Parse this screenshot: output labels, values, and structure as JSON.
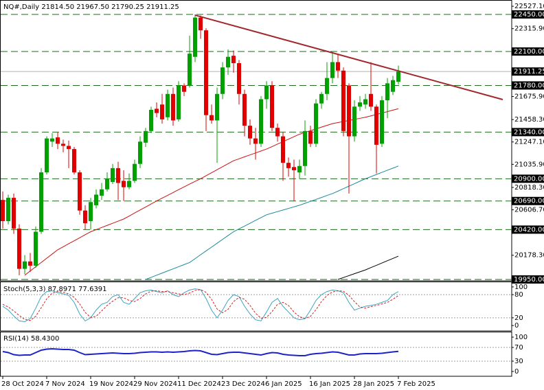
{
  "chart_data": [
    {
      "type": "candlestick",
      "header": "NQ#,Daily  21814.50 21967.50 21790.25 21911.25",
      "categories": [
        "28 Oct 2024",
        null,
        null,
        null,
        null,
        null,
        null,
        null,
        "7 Nov 2024",
        null,
        null,
        null,
        null,
        null,
        null,
        null,
        "19 Nov 2024",
        null,
        null,
        null,
        null,
        null,
        null,
        null,
        "29 Nov 2024",
        null,
        null,
        null,
        null,
        null,
        null,
        null,
        "11 Dec 2024",
        null,
        null,
        null,
        null,
        null,
        null,
        null,
        "23 Dec 2024",
        null,
        null,
        null,
        null,
        null,
        null,
        null,
        "6 Jan 2025",
        null,
        null,
        null,
        null,
        null,
        null,
        null,
        "16 Jan 2025",
        null,
        null,
        null,
        null,
        null,
        null,
        null,
        "28 Jan 2025",
        null,
        null,
        null,
        null,
        null,
        null,
        null,
        "7 Feb 2025"
      ],
      "open": [
        20700,
        20500,
        20720,
        20430,
        20050,
        20120,
        20080,
        20400,
        20960,
        21250,
        21290,
        21230,
        21210,
        21180,
        20960,
        20600,
        20500,
        20650,
        20740,
        20800,
        20870,
        21000,
        20880,
        20820,
        20880,
        21040,
        21240,
        21350,
        21560,
        21600,
        21480,
        21700,
        21460,
        21780,
        21780,
        22050,
        22420,
        22300,
        21500,
        21450,
        21700,
        21950,
        22060,
        21990,
        21700,
        21400,
        21280,
        21230,
        21650,
        21780,
        21380,
        21300,
        21050,
        21010,
        20960,
        21020,
        21350,
        21230,
        21610,
        21700,
        21850,
        22000,
        21920,
        21780,
        21300,
        21580,
        21600,
        21700,
        21580,
        21230,
        21640,
        21720,
        21814.5
      ],
      "high": [
        20780,
        20750,
        20760,
        20470,
        20180,
        20200,
        20450,
        21000,
        21300,
        21330,
        21340,
        21270,
        21260,
        21200,
        20980,
        20650,
        20720,
        20800,
        20860,
        20960,
        21040,
        21060,
        20980,
        20950,
        21080,
        21300,
        21380,
        21580,
        21620,
        21700,
        21740,
        21760,
        21820,
        21800,
        22250,
        22450,
        22440,
        22320,
        21600,
        21760,
        22000,
        22120,
        22110,
        22020,
        21740,
        21460,
        21380,
        21680,
        21820,
        21820,
        21420,
        21340,
        21100,
        21080,
        21080,
        21450,
        21400,
        21650,
        21720,
        22000,
        22100,
        22080,
        21950,
        21800,
        21640,
        21680,
        21700,
        22000,
        21600,
        21680,
        21850,
        21870,
        21967.5
      ],
      "low": [
        20430,
        20470,
        20380,
        19990,
        20000,
        20020,
        20060,
        20380,
        20940,
        21200,
        21180,
        21150,
        21000,
        20940,
        20560,
        20420,
        20420,
        20620,
        20700,
        20780,
        20850,
        20700,
        20690,
        20800,
        20860,
        21000,
        21200,
        21330,
        21480,
        21420,
        21450,
        21400,
        21440,
        21680,
        21760,
        22000,
        22220,
        21350,
        21420,
        21050,
        21650,
        21880,
        21900,
        21600,
        21300,
        21220,
        21080,
        21200,
        21560,
        21350,
        21250,
        20880,
        20920,
        20690,
        20900,
        20930,
        21200,
        21200,
        21560,
        21640,
        21800,
        21850,
        21300,
        20760,
        21250,
        21540,
        21560,
        21540,
        20950,
        21200,
        21470,
        21690,
        21790.25
      ],
      "close": [
        20500,
        20720,
        20430,
        20050,
        20120,
        20080,
        20400,
        20960,
        21280,
        21280,
        21230,
        21210,
        21180,
        20960,
        20600,
        20480,
        20680,
        20750,
        20800,
        20900,
        21000,
        20860,
        20820,
        20880,
        21040,
        21250,
        21350,
        21550,
        21520,
        21460,
        21700,
        21450,
        21780,
        21720,
        22080,
        22420,
        22300,
        21500,
        21450,
        21700,
        21950,
        22050,
        21990,
        21700,
        21400,
        21280,
        21230,
        21650,
        21780,
        21380,
        21300,
        21050,
        21000,
        20980,
        21020,
        21350,
        21230,
        21610,
        21700,
        21850,
        22000,
        21920,
        21350,
        21300,
        21580,
        21620,
        21650,
        21580,
        21220,
        21640,
        21800,
        21830,
        21911.25
      ],
      "up_color": "#00a000",
      "down_color": "#e00000",
      "lines": [
        {
          "color": "#cc1010",
          "values": [
            null,
            null,
            null,
            null,
            19990,
            20030,
            20070,
            20110,
            20150,
            20190,
            20230,
            20258,
            20287,
            20315,
            20343,
            20372,
            20400,
            20420,
            20440,
            20460,
            20480,
            20500,
            20520,
            20548,
            20577,
            20605,
            20633,
            20662,
            20690,
            20717,
            20743,
            20770,
            20797,
            20823,
            20850,
            20875,
            20900,
            20928,
            20957,
            20985,
            21013,
            21042,
            21070,
            21088,
            21107,
            21125,
            21143,
            21162,
            21180,
            21203,
            21227,
            21250,
            21273,
            21297,
            21320,
            21337,
            21353,
            21370,
            21387,
            21403,
            21420,
            21430,
            21440,
            21450,
            21460,
            21470,
            21480,
            21493,
            21507,
            21520,
            21533,
            21547,
            21560
          ]
        },
        {
          "color": "#1a8a9a",
          "values": [
            null,
            null,
            null,
            null,
            null,
            null,
            null,
            null,
            null,
            null,
            null,
            null,
            null,
            null,
            null,
            null,
            null,
            null,
            null,
            null,
            null,
            null,
            null,
            null,
            null,
            null,
            19950,
            19970,
            19990,
            20010,
            20030,
            20050,
            20070,
            20090,
            20110,
            20146,
            20183,
            20219,
            20255,
            20291,
            20328,
            20364,
            20400,
            20427,
            20453,
            20480,
            20507,
            20533,
            20560,
            20575,
            20590,
            20605,
            20620,
            20635,
            20650,
            20668,
            20687,
            20705,
            20723,
            20742,
            20760,
            20783,
            20807,
            20830,
            20853,
            20877,
            20900,
            20920,
            20940,
            20960,
            20980,
            21000,
            21020
          ]
        },
        {
          "color": "#000000",
          "values": [
            null,
            null,
            null,
            null,
            null,
            null,
            null,
            null,
            null,
            null,
            null,
            null,
            null,
            null,
            null,
            null,
            null,
            null,
            null,
            null,
            null,
            null,
            null,
            null,
            null,
            null,
            null,
            null,
            null,
            null,
            null,
            null,
            null,
            null,
            null,
            null,
            null,
            null,
            null,
            null,
            null,
            null,
            null,
            null,
            null,
            null,
            null,
            null,
            null,
            null,
            null,
            null,
            null,
            null,
            null,
            null,
            null,
            null,
            null,
            null,
            null,
            19950,
            19968,
            19986,
            20004,
            20022,
            20040,
            20062,
            20083,
            20105,
            20127,
            20148,
            20170
          ]
        }
      ],
      "trendline": {
        "x": [
          35,
          91
        ],
        "values": [
          22443,
          21647
        ],
        "color": "#a0282d"
      },
      "levels": [
        {
          "value": 22450,
          "label": "22450.00"
        },
        {
          "value": 22100,
          "label": "22100.00"
        },
        {
          "value": 21780,
          "label": "21780.00"
        },
        {
          "value": 21340,
          "label": "21340.00"
        },
        {
          "value": 20900,
          "label": "20900.00"
        },
        {
          "value": 20690,
          "label": "20690.00"
        },
        {
          "value": 20420,
          "label": "20420.00"
        },
        {
          "value": 19950,
          "label": "19950.00"
        }
      ],
      "level_color": "#1e6a1e",
      "price_line": 21911.25,
      "ylim": [
        19937,
        22586
      ],
      "yticks": [
        {
          "value": 22527.1,
          "label": "22527.10"
        },
        {
          "value": 22315.9,
          "label": "22315.90"
        },
        {
          "value": 21675.9,
          "label": "21675.90"
        },
        {
          "value": 21458.3,
          "label": "21458.30"
        },
        {
          "value": 21247.1,
          "label": "21247.10"
        },
        {
          "value": 21035.9,
          "label": "21035.90"
        },
        {
          "value": 20818.3,
          "label": "20818.30"
        },
        {
          "value": 20606.7,
          "label": "20606.70"
        },
        {
          "value": 20178.3,
          "label": "20178.30"
        }
      ]
    },
    {
      "type": "line",
      "title": "Stoch(5,3,3) 87.8971 77.6391",
      "series": [
        {
          "color": "#3ba3c0",
          "values": [
            50,
            40,
            25,
            12,
            10,
            18,
            45,
            75,
            88,
            90,
            85,
            82,
            78,
            60,
            30,
            12,
            20,
            40,
            55,
            60,
            75,
            80,
            60,
            55,
            70,
            85,
            90,
            92,
            88,
            85,
            90,
            80,
            75,
            85,
            92,
            95,
            93,
            70,
            40,
            20,
            40,
            65,
            80,
            75,
            50,
            30,
            15,
            12,
            35,
            60,
            70,
            50,
            35,
            20,
            15,
            18,
            40,
            65,
            80,
            88,
            92,
            90,
            85,
            60,
            40,
            45,
            50,
            52,
            55,
            60,
            65,
            80,
            87.8971
          ]
        },
        {
          "color": "#d02020",
          "dash": true,
          "values": [
            55,
            48,
            38,
            26,
            16,
            13,
            24,
            46,
            69,
            84,
            88,
            86,
            82,
            73,
            56,
            34,
            21,
            24,
            38,
            52,
            63,
            72,
            72,
            65,
            62,
            70,
            82,
            89,
            90,
            88,
            88,
            85,
            82,
            80,
            84,
            91,
            93,
            86,
            68,
            43,
            33,
            42,
            62,
            73,
            68,
            52,
            32,
            19,
            21,
            36,
            55,
            60,
            52,
            35,
            23,
            18,
            24,
            41,
            62,
            78,
            87,
            90,
            89,
            78,
            62,
            48,
            45,
            49,
            52,
            56,
            60,
            68,
            77.6391
          ]
        }
      ],
      "ylim": [
        -14,
        114
      ],
      "yticks": [
        100,
        80,
        20,
        0
      ],
      "levels": [
        80,
        20
      ]
    },
    {
      "type": "line",
      "title": "RSI(14) 58.4300",
      "series": [
        {
          "color": "#1a22c8",
          "values": [
            58,
            55,
            49,
            47,
            48,
            48,
            55,
            62,
            65,
            66,
            65,
            64,
            64,
            62,
            55,
            49,
            50,
            51,
            52,
            53,
            54,
            53,
            52,
            52,
            53,
            55,
            56,
            57,
            57,
            56,
            57,
            56,
            57,
            58,
            60,
            61,
            60,
            55,
            50,
            49,
            52,
            55,
            56,
            56,
            54,
            52,
            50,
            48,
            52,
            55,
            54,
            50,
            48,
            47,
            46,
            46,
            50,
            52,
            53,
            55,
            57,
            56,
            52,
            48,
            48,
            51,
            52,
            52,
            52,
            53,
            55,
            57,
            58.43
          ]
        }
      ],
      "ylim": [
        -14,
        114
      ],
      "yticks": [
        100,
        70,
        30,
        0
      ],
      "levels": [
        70,
        30
      ]
    }
  ]
}
